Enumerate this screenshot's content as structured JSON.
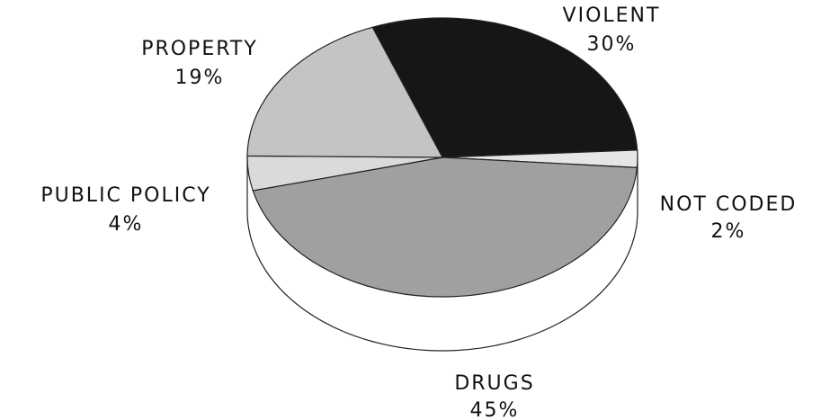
{
  "chart_data": {
    "type": "pie",
    "categories": [
      "VIOLENT",
      "NOT CODED",
      "DRUGS",
      "PUBLIC POLICY",
      "PROPERTY"
    ],
    "values": [
      30,
      2,
      45,
      4,
      19
    ],
    "value_labels": [
      "30%",
      "2%",
      "45%",
      "4%",
      "19%"
    ],
    "colors": [
      "#161616",
      "#e6e6e6",
      "#a0a0a0",
      "#dadada",
      "#c4c4c4"
    ]
  }
}
